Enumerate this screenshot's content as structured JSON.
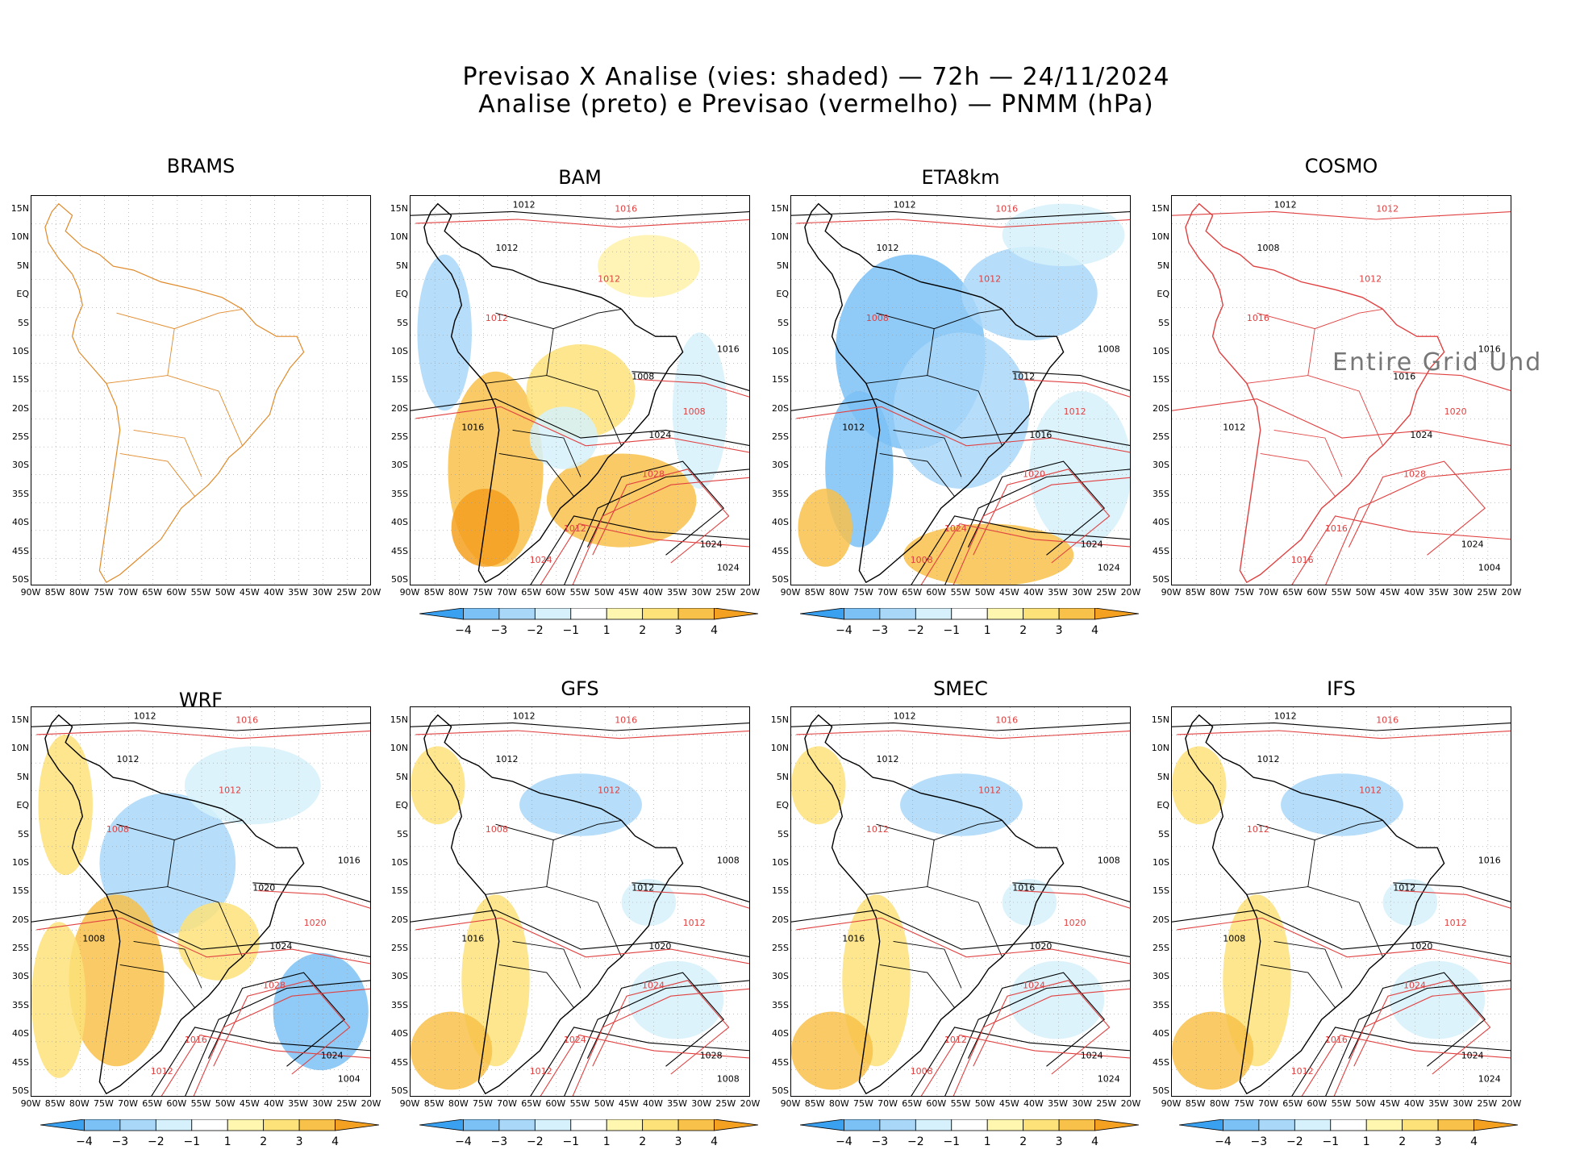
{
  "header": {
    "line1": "Previsao X Analise (vies: shaded) — 72h — 24/11/2024",
    "line2": "Analise (preto) e Previsao (vermelho) — PNMM (hPa)"
  },
  "axes": {
    "lat_labels": [
      "15N",
      "10N",
      "5N",
      "EQ",
      "5S",
      "10S",
      "15S",
      "20S",
      "25S",
      "30S",
      "35S",
      "40S",
      "45S",
      "50S"
    ],
    "lon_labels": [
      "90W",
      "85W",
      "80W",
      "75W",
      "70W",
      "65W",
      "60W",
      "55W",
      "50W",
      "45W",
      "40W",
      "35W",
      "30W",
      "25W",
      "20W"
    ]
  },
  "colorbar": {
    "labels": [
      "−4",
      "−3",
      "−2",
      "−1",
      "1",
      "2",
      "3",
      "4"
    ],
    "colors": [
      "#3aa0f0",
      "#7cc1f5",
      "#a9d7f8",
      "#d6f1fb",
      "#ffffff",
      "#fff7b0",
      "#fde27a",
      "#f8c14a",
      "#f4a020"
    ]
  },
  "panels": [
    {
      "name": "BRAMS",
      "title": "BRAMS",
      "mode": "outline",
      "note": ""
    },
    {
      "name": "BAM",
      "title": "BAM",
      "mode": "warm",
      "note": ""
    },
    {
      "name": "ETA8km",
      "title": "ETA8km",
      "mode": "cold",
      "note": ""
    },
    {
      "name": "COSMO",
      "title": "COSMO",
      "mode": "red",
      "note": "Entire Grid Und"
    },
    {
      "name": "WRF",
      "title": "WRF",
      "mode": "mixed",
      "note": ""
    },
    {
      "name": "GFS",
      "title": "GFS",
      "mode": "light",
      "note": ""
    },
    {
      "name": "SMEC",
      "title": "SMEC",
      "mode": "light",
      "note": ""
    },
    {
      "name": "IFS",
      "title": "IFS",
      "mode": "light",
      "note": ""
    }
  ],
  "isobar_labels": {
    "BAM": [
      "1012",
      "1016",
      "1012",
      "1012",
      "1016",
      "1012",
      "1008",
      "1008",
      "1024",
      "1028",
      "1024",
      "1012",
      "1016",
      "1024",
      "1024"
    ],
    "ETA8km": [
      "1012",
      "1016",
      "1012",
      "1012",
      "1008",
      "1008",
      "1012",
      "1012",
      "1016",
      "1020",
      "1024",
      "1024",
      "1012",
      "1008",
      "1024"
    ],
    "COSMO": [
      "1012",
      "1012",
      "1008",
      "1012",
      "1016",
      "1016",
      "1016",
      "1020",
      "1024",
      "1028",
      "1024",
      "1016",
      "1012",
      "1016",
      "1004"
    ],
    "WRF": [
      "1012",
      "1016",
      "1012",
      "1012",
      "1016",
      "1008",
      "1020",
      "1020",
      "1024",
      "1028",
      "1024",
      "1016",
      "1008",
      "1012",
      "1004"
    ],
    "GFS": [
      "1012",
      "1016",
      "1012",
      "1012",
      "1008",
      "1008",
      "1012",
      "1012",
      "1020",
      "1024",
      "1028",
      "1024",
      "1016",
      "1012",
      "1008"
    ],
    "SMEC": [
      "1012",
      "1016",
      "1012",
      "1012",
      "1008",
      "1012",
      "1016",
      "1020",
      "1020",
      "1024",
      "1024",
      "1012",
      "1016",
      "1008",
      "1024"
    ],
    "IFS": [
      "1012",
      "1016",
      "1012",
      "1012",
      "1016",
      "1012",
      "1012",
      "1012",
      "1020",
      "1024",
      "1024",
      "1016",
      "1008",
      "1012",
      "1024"
    ]
  }
}
